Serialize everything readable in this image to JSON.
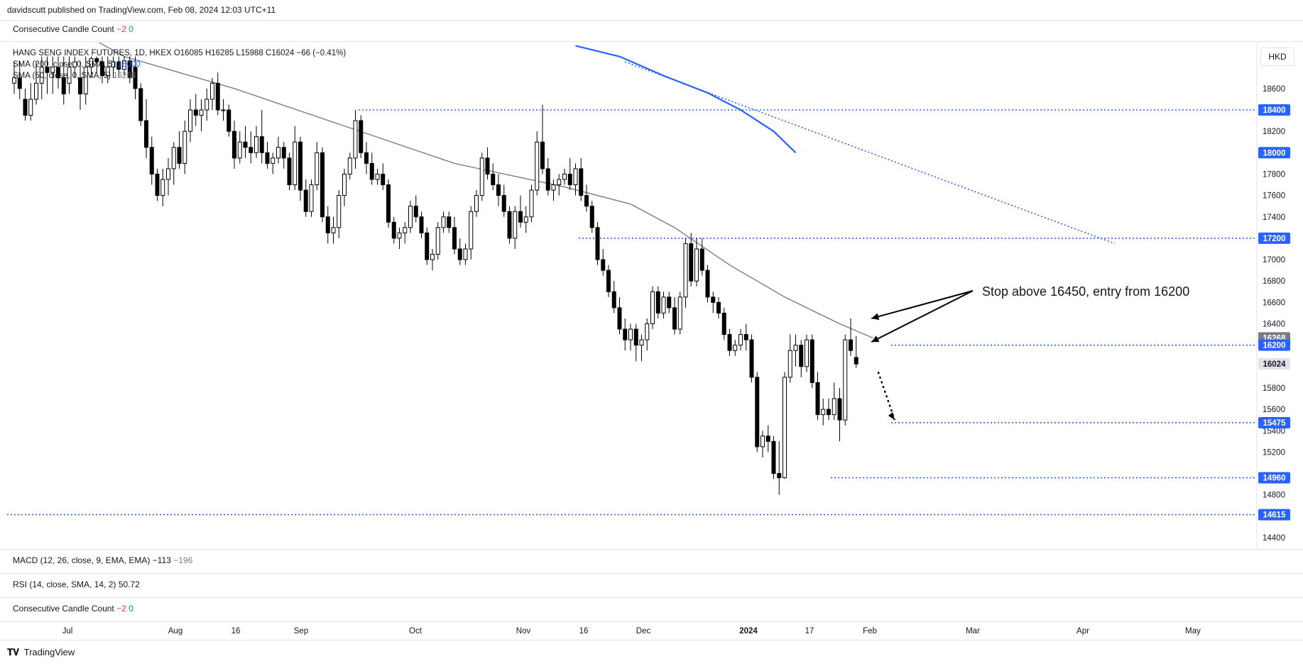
{
  "header": {
    "publisher": "davidscutt published on TradingView.com, Feb 08, 2024 12:03 UTC+11"
  },
  "top_indicator": {
    "name": "Consecutive Candle Count",
    "v1": "−2",
    "v2": "0"
  },
  "legend": {
    "symbol_line": "HANG SENG INDEX FUTURES, 1D, HKEX O16085 H16285 L15988 C16024 −66 (−0.41%)",
    "sma200": "SMA (200, close, 0, SMA, 5)",
    "sma200_value": "18000",
    "sma50": "SMA (50, close, 0, SMA, 5)",
    "sma50_value": "16268"
  },
  "currency": "HKD",
  "annotation": "Stop above 16450, entry from 16200",
  "bottom_panes": {
    "macd_label": "MACD (12, 26, close, 9, EMA, EMA)",
    "macd_v1": "−113",
    "macd_v2": "−196",
    "rsi_label": "RSI (14, close, SMA, 14, 2)",
    "rsi_value": "50.72",
    "ccc_label": "Consecutive Candle Count",
    "ccc_v1": "−2",
    "ccc_v2": "0"
  },
  "footer": {
    "brand": "TradingView"
  },
  "colors": {
    "level_line": "#2962ff",
    "sma50": "#787b86",
    "sma200": "#2962ff",
    "candle_up": "#ffffff",
    "candle_down": "#000000",
    "price_tag_blue": "#2962ff",
    "price_tag_grey": "#787b86"
  },
  "chart_data": {
    "type": "candlestick",
    "symbol": "HANG SENG INDEX FUTURES",
    "timeframe": "1D",
    "ylim": [
      14300,
      18900
    ],
    "y_ticks": [
      14400,
      14800,
      15200,
      15400,
      15600,
      15800,
      16200,
      16400,
      16600,
      16800,
      17000,
      17400,
      17600,
      17800,
      18200,
      18600
    ],
    "x_ticks": [
      "Jul",
      "Aug",
      "16",
      "Sep",
      "Oct",
      "Nov",
      "16",
      "Dec",
      "2024",
      "17",
      "Feb",
      "Mar",
      "Apr",
      "May"
    ],
    "price_labels": [
      {
        "value": 18400,
        "style": "blue"
      },
      {
        "value": 18000,
        "style": "blue"
      },
      {
        "value": 17200,
        "style": "blue"
      },
      {
        "value": 16268,
        "style": "grey"
      },
      {
        "value": 16200,
        "style": "blue"
      },
      {
        "value": 16024,
        "style": "last"
      },
      {
        "value": 15475,
        "style": "blue"
      },
      {
        "value": 14960,
        "style": "blue"
      },
      {
        "value": 14615,
        "style": "blue"
      }
    ],
    "horizontal_levels": [
      {
        "value": 18400,
        "from": "Sep"
      },
      {
        "value": 17200,
        "from": "Nov"
      },
      {
        "value": 16200,
        "from": "Feb"
      },
      {
        "value": 15475,
        "from": "Feb"
      },
      {
        "value": 14960,
        "from": "Jan"
      },
      {
        "value": 14615,
        "from": "Jul"
      }
    ],
    "candles": [
      {
        "o": 18650,
        "h": 18850,
        "l": 18550,
        "c": 18700
      },
      {
        "o": 18700,
        "h": 18850,
        "l": 18500,
        "c": 18600
      },
      {
        "o": 18500,
        "h": 18600,
        "l": 18300,
        "c": 18350
      },
      {
        "o": 18350,
        "h": 18650,
        "l": 18300,
        "c": 18500
      },
      {
        "o": 18500,
        "h": 18850,
        "l": 18450,
        "c": 18650
      },
      {
        "o": 18650,
        "h": 18900,
        "l": 18500,
        "c": 18800
      },
      {
        "o": 18800,
        "h": 18900,
        "l": 18550,
        "c": 18750
      },
      {
        "o": 18750,
        "h": 18900,
        "l": 18550,
        "c": 18800
      },
      {
        "o": 18800,
        "h": 18900,
        "l": 18600,
        "c": 18700
      },
      {
        "o": 18700,
        "h": 18900,
        "l": 18450,
        "c": 18550
      },
      {
        "o": 18650,
        "h": 18900,
        "l": 18550,
        "c": 18800
      },
      {
        "o": 18800,
        "h": 18900,
        "l": 18700,
        "c": 18850
      },
      {
        "o": 18700,
        "h": 18850,
        "l": 18400,
        "c": 18550
      },
      {
        "o": 18550,
        "h": 18900,
        "l": 18450,
        "c": 18800
      },
      {
        "o": 18800,
        "h": 18900,
        "l": 18700,
        "c": 18880
      },
      {
        "o": 18880,
        "h": 18900,
        "l": 18750,
        "c": 18850
      },
      {
        "o": 18850,
        "h": 18900,
        "l": 18650,
        "c": 18720
      },
      {
        "o": 18720,
        "h": 18900,
        "l": 18650,
        "c": 18800
      },
      {
        "o": 18800,
        "h": 18900,
        "l": 18700,
        "c": 18850
      },
      {
        "o": 18850,
        "h": 18900,
        "l": 18700,
        "c": 18780
      },
      {
        "o": 18780,
        "h": 18900,
        "l": 18720,
        "c": 18860
      },
      {
        "o": 18860,
        "h": 18900,
        "l": 18650,
        "c": 18700
      },
      {
        "o": 18800,
        "h": 18900,
        "l": 18500,
        "c": 18600
      },
      {
        "o": 18600,
        "h": 18650,
        "l": 18250,
        "c": 18300
      },
      {
        "o": 18300,
        "h": 18500,
        "l": 17950,
        "c": 18050
      },
      {
        "o": 18050,
        "h": 18150,
        "l": 17700,
        "c": 17800
      },
      {
        "o": 17800,
        "h": 17850,
        "l": 17550,
        "c": 17600
      },
      {
        "o": 17600,
        "h": 17850,
        "l": 17500,
        "c": 17750
      },
      {
        "o": 17750,
        "h": 17950,
        "l": 17600,
        "c": 17850
      },
      {
        "o": 17850,
        "h": 18100,
        "l": 17700,
        "c": 18050
      },
      {
        "o": 18050,
        "h": 18200,
        "l": 17850,
        "c": 17900
      },
      {
        "o": 17900,
        "h": 18300,
        "l": 17800,
        "c": 18200
      },
      {
        "o": 18200,
        "h": 18500,
        "l": 18100,
        "c": 18400
      },
      {
        "o": 18400,
        "h": 18550,
        "l": 18250,
        "c": 18350
      },
      {
        "o": 18350,
        "h": 18500,
        "l": 18200,
        "c": 18400
      },
      {
        "o": 18400,
        "h": 18600,
        "l": 18300,
        "c": 18500
      },
      {
        "o": 18500,
        "h": 18700,
        "l": 18400,
        "c": 18650
      },
      {
        "o": 18650,
        "h": 18750,
        "l": 18350,
        "c": 18400
      },
      {
        "o": 18400,
        "h": 18500,
        "l": 18300,
        "c": 18400
      },
      {
        "o": 18400,
        "h": 18450,
        "l": 18150,
        "c": 18200
      },
      {
        "o": 18200,
        "h": 18300,
        "l": 17850,
        "c": 17950
      },
      {
        "o": 17950,
        "h": 18200,
        "l": 17900,
        "c": 18100
      },
      {
        "o": 18100,
        "h": 18250,
        "l": 17950,
        "c": 18050
      },
      {
        "o": 18050,
        "h": 18200,
        "l": 17900,
        "c": 18000
      },
      {
        "o": 18000,
        "h": 18250,
        "l": 17950,
        "c": 18150
      },
      {
        "o": 18150,
        "h": 18400,
        "l": 17900,
        "c": 18000
      },
      {
        "o": 18000,
        "h": 18100,
        "l": 17850,
        "c": 17900
      },
      {
        "o": 17900,
        "h": 18000,
        "l": 17800,
        "c": 17950
      },
      {
        "o": 17950,
        "h": 18150,
        "l": 17900,
        "c": 18050
      },
      {
        "o": 18050,
        "h": 18100,
        "l": 17850,
        "c": 17950
      },
      {
        "o": 17950,
        "h": 18000,
        "l": 17650,
        "c": 17700
      },
      {
        "o": 17700,
        "h": 18250,
        "l": 17650,
        "c": 18100
      },
      {
        "o": 18100,
        "h": 18150,
        "l": 17550,
        "c": 17650
      },
      {
        "o": 17650,
        "h": 17750,
        "l": 17400,
        "c": 17450
      },
      {
        "o": 17450,
        "h": 17750,
        "l": 17400,
        "c": 17700
      },
      {
        "o": 17700,
        "h": 18100,
        "l": 17650,
        "c": 18000
      },
      {
        "o": 18000,
        "h": 18050,
        "l": 17350,
        "c": 17400
      },
      {
        "o": 17400,
        "h": 17500,
        "l": 17150,
        "c": 17250
      },
      {
        "o": 17250,
        "h": 17400,
        "l": 17150,
        "c": 17300
      },
      {
        "o": 17300,
        "h": 17650,
        "l": 17200,
        "c": 17600
      },
      {
        "o": 17600,
        "h": 17850,
        "l": 17500,
        "c": 17800
      },
      {
        "o": 17800,
        "h": 18000,
        "l": 17750,
        "c": 17950
      },
      {
        "o": 17950,
        "h": 18400,
        "l": 17850,
        "c": 18300
      },
      {
        "o": 18300,
        "h": 18350,
        "l": 17950,
        "c": 18000
      },
      {
        "o": 18000,
        "h": 18100,
        "l": 17800,
        "c": 17900
      },
      {
        "o": 17900,
        "h": 18000,
        "l": 17700,
        "c": 17750
      },
      {
        "o": 17750,
        "h": 17850,
        "l": 17700,
        "c": 17800
      },
      {
        "o": 17800,
        "h": 17900,
        "l": 17650,
        "c": 17700
      },
      {
        "o": 17700,
        "h": 17750,
        "l": 17300,
        "c": 17350
      },
      {
        "o": 17350,
        "h": 17400,
        "l": 17150,
        "c": 17200
      },
      {
        "o": 17200,
        "h": 17300,
        "l": 17100,
        "c": 17250
      },
      {
        "o": 17250,
        "h": 17350,
        "l": 17150,
        "c": 17300
      },
      {
        "o": 17300,
        "h": 17550,
        "l": 17250,
        "c": 17500
      },
      {
        "o": 17500,
        "h": 17600,
        "l": 17350,
        "c": 17400
      },
      {
        "o": 17400,
        "h": 17450,
        "l": 17200,
        "c": 17250
      },
      {
        "o": 17250,
        "h": 17300,
        "l": 16950,
        "c": 17000
      },
      {
        "o": 17000,
        "h": 17100,
        "l": 16900,
        "c": 17050
      },
      {
        "o": 17050,
        "h": 17350,
        "l": 17000,
        "c": 17300
      },
      {
        "o": 17300,
        "h": 17450,
        "l": 17250,
        "c": 17400
      },
      {
        "o": 17400,
        "h": 17450,
        "l": 17250,
        "c": 17300
      },
      {
        "o": 17300,
        "h": 17400,
        "l": 17050,
        "c": 17100
      },
      {
        "o": 17100,
        "h": 17200,
        "l": 16950,
        "c": 17000
      },
      {
        "o": 17000,
        "h": 17150,
        "l": 16950,
        "c": 17100
      },
      {
        "o": 17100,
        "h": 17500,
        "l": 17000,
        "c": 17450
      },
      {
        "o": 17450,
        "h": 17650,
        "l": 17400,
        "c": 17600
      },
      {
        "o": 17600,
        "h": 18000,
        "l": 17550,
        "c": 17950
      },
      {
        "o": 17950,
        "h": 18050,
        "l": 17750,
        "c": 17800
      },
      {
        "o": 17800,
        "h": 17900,
        "l": 17650,
        "c": 17700
      },
      {
        "o": 17700,
        "h": 17800,
        "l": 17500,
        "c": 17600
      },
      {
        "o": 17600,
        "h": 17700,
        "l": 17400,
        "c": 17450
      },
      {
        "o": 17450,
        "h": 17500,
        "l": 17150,
        "c": 17200
      },
      {
        "o": 17200,
        "h": 17500,
        "l": 17100,
        "c": 17450
      },
      {
        "o": 17450,
        "h": 17600,
        "l": 17300,
        "c": 17350
      },
      {
        "o": 17350,
        "h": 17500,
        "l": 17250,
        "c": 17400
      },
      {
        "o": 17400,
        "h": 17700,
        "l": 17350,
        "c": 17650
      },
      {
        "o": 17650,
        "h": 18200,
        "l": 17600,
        "c": 18100
      },
      {
        "o": 18100,
        "h": 18450,
        "l": 17800,
        "c": 17850
      },
      {
        "o": 17850,
        "h": 17950,
        "l": 17600,
        "c": 17650
      },
      {
        "o": 17650,
        "h": 17750,
        "l": 17550,
        "c": 17700
      },
      {
        "o": 17700,
        "h": 17800,
        "l": 17600,
        "c": 17750
      },
      {
        "o": 17750,
        "h": 17850,
        "l": 17700,
        "c": 17800
      },
      {
        "o": 17800,
        "h": 17950,
        "l": 17650,
        "c": 17700
      },
      {
        "o": 17700,
        "h": 17900,
        "l": 17600,
        "c": 17850
      },
      {
        "o": 17850,
        "h": 17950,
        "l": 17550,
        "c": 17600
      },
      {
        "o": 17600,
        "h": 17700,
        "l": 17450,
        "c": 17500
      },
      {
        "o": 17500,
        "h": 17550,
        "l": 17250,
        "c": 17300
      },
      {
        "o": 17300,
        "h": 17350,
        "l": 16950,
        "c": 17000
      },
      {
        "o": 17000,
        "h": 17100,
        "l": 16850,
        "c": 16900
      },
      {
        "o": 16900,
        "h": 16950,
        "l": 16650,
        "c": 16700
      },
      {
        "o": 16700,
        "h": 16800,
        "l": 16500,
        "c": 16550
      },
      {
        "o": 16550,
        "h": 16650,
        "l": 16300,
        "c": 16350
      },
      {
        "o": 16350,
        "h": 16450,
        "l": 16150,
        "c": 16250
      },
      {
        "o": 16250,
        "h": 16400,
        "l": 16150,
        "c": 16350
      },
      {
        "o": 16350,
        "h": 16400,
        "l": 16050,
        "c": 16200
      },
      {
        "o": 16200,
        "h": 16300,
        "l": 16050,
        "c": 16250
      },
      {
        "o": 16250,
        "h": 16450,
        "l": 16150,
        "c": 16400
      },
      {
        "o": 16400,
        "h": 16750,
        "l": 16350,
        "c": 16700
      },
      {
        "o": 16700,
        "h": 16750,
        "l": 16450,
        "c": 16500
      },
      {
        "o": 16500,
        "h": 16700,
        "l": 16450,
        "c": 16650
      },
      {
        "o": 16650,
        "h": 16700,
        "l": 16500,
        "c": 16550
      },
      {
        "o": 16550,
        "h": 16650,
        "l": 16300,
        "c": 16350
      },
      {
        "o": 16350,
        "h": 16700,
        "l": 16300,
        "c": 16650
      },
      {
        "o": 16650,
        "h": 17200,
        "l": 16550,
        "c": 17150
      },
      {
        "o": 17150,
        "h": 17250,
        "l": 16750,
        "c": 16800
      },
      {
        "o": 16800,
        "h": 17200,
        "l": 16750,
        "c": 17100
      },
      {
        "o": 17100,
        "h": 17200,
        "l": 16850,
        "c": 16900
      },
      {
        "o": 16900,
        "h": 16950,
        "l": 16600,
        "c": 16650
      },
      {
        "o": 16650,
        "h": 16700,
        "l": 16500,
        "c": 16600
      },
      {
        "o": 16600,
        "h": 16650,
        "l": 16450,
        "c": 16500
      },
      {
        "o": 16500,
        "h": 16550,
        "l": 16250,
        "c": 16300
      },
      {
        "o": 16300,
        "h": 16350,
        "l": 16100,
        "c": 16150
      },
      {
        "o": 16150,
        "h": 16250,
        "l": 16100,
        "c": 16200
      },
      {
        "o": 16200,
        "h": 16350,
        "l": 16150,
        "c": 16300
      },
      {
        "o": 16300,
        "h": 16400,
        "l": 16150,
        "c": 16250
      },
      {
        "o": 16250,
        "h": 16300,
        "l": 15850,
        "c": 15900
      },
      {
        "o": 15900,
        "h": 15950,
        "l": 15200,
        "c": 15250
      },
      {
        "o": 15250,
        "h": 15400,
        "l": 15150,
        "c": 15350
      },
      {
        "o": 15350,
        "h": 15450,
        "l": 15200,
        "c": 15300
      },
      {
        "o": 15300,
        "h": 15350,
        "l": 14950,
        "c": 15000
      },
      {
        "o": 15000,
        "h": 15300,
        "l": 14800,
        "c": 14960
      },
      {
        "o": 14960,
        "h": 15950,
        "l": 14950,
        "c": 15900
      },
      {
        "o": 15900,
        "h": 16300,
        "l": 15850,
        "c": 16150
      },
      {
        "o": 16150,
        "h": 16300,
        "l": 16000,
        "c": 16200
      },
      {
        "o": 16200,
        "h": 16250,
        "l": 15900,
        "c": 16000
      },
      {
        "o": 16000,
        "h": 16300,
        "l": 15950,
        "c": 16250
      },
      {
        "o": 16250,
        "h": 16300,
        "l": 15800,
        "c": 15850
      },
      {
        "o": 15850,
        "h": 15950,
        "l": 15500,
        "c": 15550
      },
      {
        "o": 15550,
        "h": 15700,
        "l": 15450,
        "c": 15600
      },
      {
        "o": 15600,
        "h": 15700,
        "l": 15500,
        "c": 15550
      },
      {
        "o": 15550,
        "h": 15850,
        "l": 15500,
        "c": 15700
      },
      {
        "o": 15700,
        "h": 15800,
        "l": 15300,
        "c": 15500
      },
      {
        "o": 15500,
        "h": 16300,
        "l": 15450,
        "c": 16250
      },
      {
        "o": 16250,
        "h": 16450,
        "l": 16100,
        "c": 16150
      },
      {
        "o": 16085,
        "h": 16285,
        "l": 15988,
        "c": 16024
      }
    ],
    "sma50": [
      [
        6,
        19300
      ],
      [
        20,
        18900
      ],
      [
        40,
        18600
      ],
      [
        60,
        18250
      ],
      [
        80,
        17900
      ],
      [
        100,
        17680
      ],
      [
        112,
        17520
      ],
      [
        120,
        17300
      ],
      [
        130,
        16950
      ],
      [
        140,
        16650
      ],
      [
        150,
        16400
      ],
      [
        156,
        16268
      ]
    ],
    "sma200": [
      [
        102,
        19000
      ],
      [
        110,
        18900
      ],
      [
        118,
        18720
      ],
      [
        126,
        18560
      ],
      [
        132,
        18400
      ],
      [
        138,
        18200
      ],
      [
        142,
        18000
      ]
    ],
    "trendline": {
      "start": [
        111,
        18850
      ],
      "end": [
        200,
        17150
      ]
    },
    "arrows": [
      {
        "from_label": "annotation",
        "to": [
          155,
          16450
        ]
      },
      {
        "from_label": "annotation",
        "to": [
          155,
          16230
        ]
      },
      {
        "dotted": true,
        "from": [
          157,
          15950
        ],
        "to": [
          160,
          15500
        ]
      }
    ]
  }
}
